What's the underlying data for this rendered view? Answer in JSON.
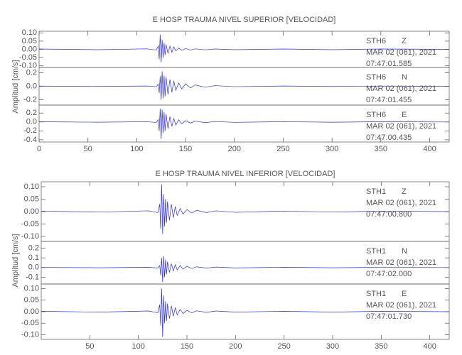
{
  "chart_data": [
    {
      "type": "line",
      "title": "E HOSP TRAUMA NIVEL SUPERIOR [VELOCIDAD]",
      "y_label": "Amplitud [cm/s]",
      "color": "#2a2ae8",
      "xlim": [
        0,
        420
      ],
      "xticks": [
        0,
        50,
        100,
        150,
        200,
        250,
        300,
        350,
        400
      ],
      "x": [
        0,
        60,
        110,
        120,
        122,
        123,
        124,
        125,
        126,
        127,
        128,
        129,
        130,
        132,
        134,
        136,
        138,
        140,
        143,
        146,
        150,
        155,
        160,
        170,
        180,
        200,
        250,
        300,
        350,
        420
      ],
      "panels": [
        {
          "station": "STH6",
          "component": "Z",
          "date": "MAR 02 (061), 2021",
          "time": "07:47:01.585",
          "ylim": [
            -0.11,
            0.11
          ],
          "yticks": [
            {
              "value": 0.1,
              "label": "0.10"
            },
            {
              "value": 0.05,
              "label": "0.05"
            },
            {
              "value": 0,
              "label": "0.00"
            },
            {
              "value": -0.05,
              "label": "-0.05"
            },
            {
              "value": -0.1,
              "label": "-0.10"
            }
          ],
          "values": [
            0.002,
            -0.002,
            0.003,
            -0.004,
            0.02,
            -0.06,
            0.09,
            -0.08,
            0.06,
            -0.05,
            0.04,
            -0.035,
            0.03,
            -0.025,
            0.02,
            -0.018,
            0.015,
            -0.01,
            0.008,
            -0.006,
            0.005,
            -0.004,
            0.003,
            -0.003,
            0.002,
            -0.002,
            0.002,
            -0.002,
            0.002,
            0
          ]
        },
        {
          "station": "STH6",
          "component": "N",
          "date": "MAR 02 (061), 2021",
          "time": "07:47:01.455",
          "ylim": [
            -0.28,
            0.28
          ],
          "yticks": [
            0.2,
            {
              "value": 0,
              "label": "0.0"
            },
            -0.2
          ],
          "values": [
            0.003,
            -0.003,
            0.004,
            -0.006,
            0.03,
            -0.1,
            0.15,
            -0.2,
            0.22,
            -0.18,
            0.16,
            -0.15,
            0.14,
            -0.12,
            0.1,
            -0.09,
            0.08,
            -0.06,
            0.05,
            -0.04,
            0.035,
            -0.025,
            0.02,
            -0.015,
            0.01,
            -0.006,
            0.004,
            -0.003,
            0.003,
            0
          ]
        },
        {
          "station": "STH6",
          "component": "E",
          "date": "MAR 02 (061), 2021",
          "time": "07:47:00.435",
          "ylim": [
            -0.45,
            0.38
          ],
          "yticks": [
            0.2,
            {
              "value": 0,
              "label": "0.0"
            },
            -0.2,
            -0.4
          ],
          "values": [
            0.005,
            -0.005,
            0.006,
            -0.01,
            0.05,
            -0.2,
            0.3,
            -0.38,
            0.28,
            -0.25,
            0.22,
            -0.2,
            0.18,
            -0.15,
            0.12,
            -0.1,
            0.08,
            -0.07,
            0.05,
            -0.04,
            0.03,
            -0.025,
            0.02,
            -0.015,
            0.01,
            -0.008,
            0.006,
            -0.005,
            0.005,
            0
          ]
        }
      ]
    },
    {
      "type": "line",
      "title": "E HOSP TRAUMA NIVEL INFERIOR [VELOCIDAD]",
      "y_label": "Amplitud [cm/s]",
      "color": "#2a2ae8",
      "xlim": [
        0,
        420
      ],
      "xticks": [
        50,
        100,
        150,
        200,
        250,
        300,
        350,
        400
      ],
      "x": [
        0,
        60,
        110,
        120,
        122,
        123,
        124,
        125,
        126,
        127,
        128,
        129,
        130,
        132,
        134,
        136,
        138,
        140,
        143,
        146,
        150,
        155,
        160,
        170,
        180,
        200,
        250,
        300,
        350,
        420
      ],
      "panels": [
        {
          "station": "STH1",
          "component": "Z",
          "date": "MAR 02 (061), 2021",
          "time": "07:47:00.800",
          "ylim": [
            -0.12,
            0.12
          ],
          "yticks": [
            {
              "value": 0.1,
              "label": "0.10"
            },
            {
              "value": 0.05,
              "label": "0.05"
            },
            {
              "value": 0,
              "label": "0.00"
            },
            {
              "value": -0.05,
              "label": "-0.05"
            },
            {
              "value": -0.1,
              "label": "-0.10"
            }
          ],
          "values": [
            0.002,
            -0.002,
            0.003,
            -0.004,
            0.03,
            -0.07,
            0.11,
            -0.09,
            0.07,
            -0.06,
            0.05,
            -0.045,
            0.04,
            -0.035,
            0.03,
            -0.025,
            0.02,
            -0.015,
            0.012,
            -0.01,
            0.008,
            -0.006,
            0.005,
            -0.004,
            0.003,
            -0.003,
            0.002,
            -0.002,
            0.002,
            0
          ]
        },
        {
          "station": "STH1",
          "component": "N",
          "date": "MAR 02 (061), 2021",
          "time": "07:47:02.000",
          "ylim": [
            -0.17,
            0.27
          ],
          "yticks": [
            0.2,
            0.1,
            {
              "value": 0,
              "label": "0.0"
            },
            -0.1
          ],
          "values": [
            0.002,
            -0.002,
            0.003,
            -0.005,
            0.02,
            -0.08,
            0.1,
            -0.15,
            0.12,
            -0.1,
            0.08,
            -0.07,
            0.06,
            -0.05,
            0.04,
            -0.035,
            0.03,
            -0.025,
            0.02,
            -0.015,
            0.012,
            -0.01,
            0.008,
            -0.006,
            0.005,
            -0.004,
            0.003,
            -0.002,
            0.002,
            0
          ]
        },
        {
          "station": "STH1",
          "component": "E",
          "date": "MAR 02 (061), 2021",
          "time": "07:47:01.730",
          "ylim": [
            -0.12,
            0.12
          ],
          "yticks": [
            {
              "value": 0.1,
              "label": "0.10"
            },
            {
              "value": 0.05,
              "label": "0.05"
            },
            {
              "value": 0,
              "label": "0.00"
            },
            {
              "value": -0.05,
              "label": "-0.05"
            },
            {
              "value": -0.1,
              "label": "-0.10"
            }
          ],
          "values": [
            0.002,
            -0.002,
            0.003,
            -0.004,
            0.03,
            -0.06,
            0.1,
            -0.11,
            0.07,
            -0.05,
            0.045,
            -0.04,
            0.035,
            -0.03,
            0.025,
            -0.02,
            0.018,
            -0.014,
            0.01,
            -0.008,
            0.006,
            -0.005,
            0.004,
            -0.003,
            0.003,
            -0.002,
            0.002,
            -0.002,
            0.002,
            0
          ]
        }
      ]
    }
  ]
}
